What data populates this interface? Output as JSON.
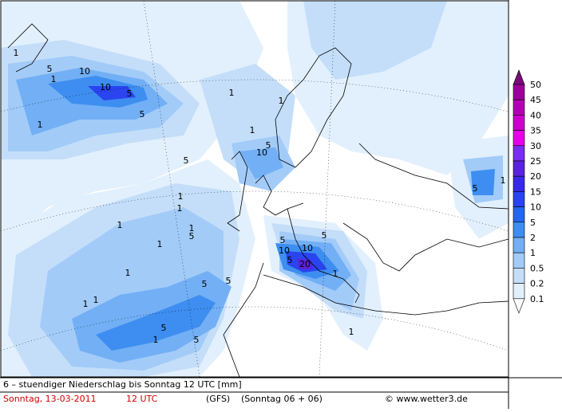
{
  "map": {
    "contour_labels": [
      "5",
      "10",
      "10",
      "5",
      "5",
      "1",
      "1",
      "1",
      "5",
      "10",
      "5",
      "1",
      "1",
      "1",
      "1",
      "1",
      "5",
      "1",
      "1",
      "5",
      "10",
      "20",
      "10",
      "5",
      "5",
      "1",
      "5",
      "5",
      "5",
      "1",
      "1",
      "5",
      "1",
      "1",
      "1",
      "5",
      "1",
      "1"
    ]
  },
  "legend": {
    "labels": [
      "50",
      "45",
      "40",
      "35",
      "30",
      "25",
      "20",
      "15",
      "10",
      "5",
      "2",
      "1",
      "0.5",
      "0.2",
      "0.1"
    ],
    "colors": [
      "#7a0a7a",
      "#9b009b",
      "#b400b4",
      "#cc00cc",
      "#e600e6",
      "#7a2cf0",
      "#5a22dc",
      "#3a28e8",
      "#2a44f0",
      "#2466ee",
      "#3d8ef0",
      "#72aff5",
      "#a2cbf8",
      "#c4def9",
      "#e2f0fd",
      "#ffffff"
    ]
  },
  "footer": {
    "description": "6 – stuendiger Niederschlag bis Sonntag 12 UTC [mm]",
    "date": "Sonntag, 13-03-2011",
    "time": "12 UTC",
    "model": "(GFS)",
    "run": "(Sonntag 06 + 06)",
    "copyright": "© www.wetter3.de"
  }
}
